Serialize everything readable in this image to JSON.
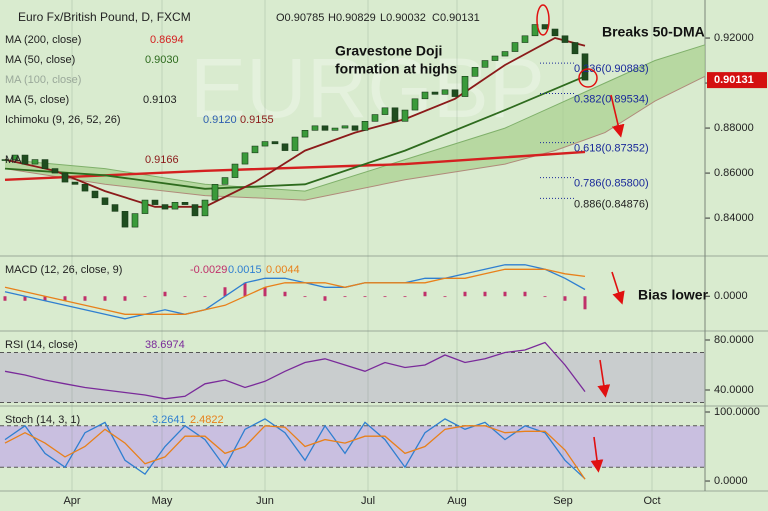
{
  "chart_data": [
    {
      "type": "candlestick",
      "title": "Euro Fx/British Pound, D, FXCM",
      "ohlc_labels": [
        "O0.90785",
        "H0.90829",
        "L0.90032",
        "C0.90131"
      ],
      "watermark": "EURGBP",
      "x": [
        0,
        1,
        2,
        3,
        4,
        5,
        6,
        7,
        8,
        9,
        10,
        11,
        12,
        13,
        14,
        15,
        16,
        17,
        18,
        19,
        20,
        21,
        22,
        23,
        24,
        25,
        26,
        27,
        28,
        29,
        30,
        31,
        32,
        33,
        34,
        35,
        36,
        37,
        38,
        39,
        40,
        41,
        42,
        43,
        44,
        45,
        46,
        47,
        48,
        49,
        50,
        51,
        52,
        53,
        54,
        55,
        56,
        57,
        58
      ],
      "values": [
        0.866,
        0.868,
        0.864,
        0.866,
        0.862,
        0.86,
        0.856,
        0.855,
        0.852,
        0.849,
        0.846,
        0.843,
        0.836,
        0.842,
        0.848,
        0.846,
        0.844,
        0.847,
        0.846,
        0.841,
        0.848,
        0.855,
        0.858,
        0.864,
        0.869,
        0.872,
        0.874,
        0.873,
        0.87,
        0.876,
        0.879,
        0.881,
        0.879,
        0.88,
        0.881,
        0.879,
        0.883,
        0.886,
        0.889,
        0.883,
        0.888,
        0.893,
        0.896,
        0.895,
        0.897,
        0.894,
        0.903,
        0.907,
        0.91,
        0.912,
        0.914,
        0.918,
        0.921,
        0.926,
        0.924,
        0.921,
        0.918,
        0.913,
        0.90131
      ],
      "last_label": "0.90131",
      "color_up": "#3a9a3a",
      "color_down": "#1f4d1f",
      "xlim": [
        -0.5,
        70
      ],
      "xticks": [
        {
          "value": 6.7,
          "label": "Apr"
        },
        {
          "value": 15.7,
          "label": "May"
        },
        {
          "value": 26,
          "label": "Jun"
        },
        {
          "value": 36.3,
          "label": "Jul"
        },
        {
          "value": 45.2,
          "label": "Aug"
        },
        {
          "value": 55.8,
          "label": "Sep"
        },
        {
          "value": 64.7,
          "label": "Oct"
        }
      ],
      "ylim": [
        0.8236,
        0.9369
      ],
      "yticks": [
        {
          "value": 0.84,
          "label": "0.84000"
        },
        {
          "value": 0.86,
          "label": "0.86000"
        },
        {
          "value": 0.88,
          "label": "0.88000"
        },
        {
          "value": 0.9,
          "label": "0.90000"
        },
        {
          "value": 0.92,
          "label": "0.92000"
        }
      ],
      "series": [
        {
          "name": "MA (200, close)",
          "value_label": "0.8694",
          "color": "#d42020",
          "x": [
            0,
            20,
            40,
            58
          ],
          "values": [
            0.857,
            0.861,
            0.864,
            0.8694
          ]
        },
        {
          "name": "MA (50, close)",
          "value_label": "0.9030",
          "color": "#2e6b1e",
          "x": [
            0,
            10,
            20,
            30,
            40,
            50,
            58
          ],
          "values": [
            0.862,
            0.859,
            0.853,
            0.855,
            0.87,
            0.888,
            0.903
          ]
        },
        {
          "name": "MA",
          "value_label": "0.9166",
          "color": "#8b1a1a",
          "x": [
            0,
            5,
            10,
            15,
            20,
            25,
            30,
            35,
            40,
            45,
            50,
            55,
            58
          ],
          "values": [
            0.866,
            0.861,
            0.852,
            0.845,
            0.845,
            0.856,
            0.87,
            0.878,
            0.884,
            0.893,
            0.908,
            0.92,
            0.9166
          ]
        }
      ],
      "legend_rows": [
        {
          "label": "MA (100, close)"
        },
        {
          "label": "MA (5, close)",
          "value": "0.9103"
        }
      ],
      "cloud": {
        "name": "Ichimoku (9, 26, 52, 26)",
        "value_labels": [
          "0.9120",
          "0.9155"
        ],
        "color": "#a8d08d",
        "x": [
          0,
          10,
          20,
          30,
          40,
          50,
          55,
          60,
          65,
          70
        ],
        "span_a": [
          0.866,
          0.862,
          0.855,
          0.852,
          0.866,
          0.88,
          0.89,
          0.9,
          0.91,
          0.917
        ],
        "span_b": [
          0.862,
          0.855,
          0.85,
          0.848,
          0.857,
          0.864,
          0.87,
          0.878,
          0.892,
          0.903
        ]
      },
      "fibonacci": [
        {
          "label": "0.236(0.90883)",
          "value": 0.90883
        },
        {
          "label": "0.382(0.89534)",
          "value": 0.89534
        },
        {
          "label": "0.618(0.87352)",
          "value": 0.87352
        },
        {
          "label": "0.786(0.85800)",
          "value": 0.858
        },
        {
          "label": "0.886(0.84876)",
          "value": 0.84876
        }
      ]
    },
    {
      "type": "line",
      "title": "MACD (12, 26, close, 9)",
      "x": [
        0,
        2,
        4,
        6,
        8,
        10,
        12,
        14,
        16,
        18,
        20,
        22,
        24,
        26,
        28,
        30,
        32,
        34,
        36,
        38,
        40,
        42,
        44,
        46,
        48,
        50,
        52,
        54,
        56,
        58
      ],
      "ylim": [
        -0.0075,
        0.0085
      ],
      "yticks": [
        {
          "value": 0,
          "label": "0.0000"
        }
      ],
      "histogram": {
        "color": "#c0306a",
        "value_label": "-0.0029",
        "values": [
          -0.001,
          -0.001,
          -0.001,
          -0.001,
          -0.001,
          -0.001,
          -0.001,
          0,
          0.001,
          0,
          0,
          0.002,
          0.003,
          0.002,
          0.001,
          0,
          -0.001,
          0,
          0,
          0,
          0,
          0.001,
          0,
          0.001,
          0.001,
          0.001,
          0.001,
          0,
          -0.001,
          -0.0029
        ]
      },
      "series": [
        {
          "color": "#2f7fd0",
          "value_label": "0.0015",
          "values": [
            0.001,
            0,
            -0.001,
            -0.002,
            -0.003,
            -0.004,
            -0.005,
            -0.004,
            -0.003,
            -0.004,
            -0.003,
            0,
            0.003,
            0.004,
            0.004,
            0.003,
            0.002,
            0.002,
            0.003,
            0.003,
            0.003,
            0.004,
            0.004,
            0.005,
            0.006,
            0.007,
            0.007,
            0.006,
            0.004,
            0.0015
          ]
        },
        {
          "color": "#e8801a",
          "value_label": "0.0044",
          "values": [
            0.002,
            0.001,
            0,
            -0.001,
            -0.002,
            -0.003,
            -0.004,
            -0.004,
            -0.004,
            -0.004,
            -0.003,
            -0.002,
            0,
            0.002,
            0.003,
            0.003,
            0.003,
            0.002,
            0.003,
            0.003,
            0.003,
            0.003,
            0.004,
            0.004,
            0.005,
            0.006,
            0.006,
            0.006,
            0.005,
            0.0044
          ]
        }
      ]
    },
    {
      "type": "line",
      "title": "RSI (14, close)",
      "x": [
        0,
        2,
        4,
        6,
        8,
        10,
        12,
        14,
        16,
        18,
        20,
        22,
        24,
        26,
        28,
        30,
        32,
        34,
        36,
        38,
        40,
        42,
        44,
        46,
        48,
        50,
        52,
        54,
        56,
        58
      ],
      "ylim": [
        28,
        85.6
      ],
      "yticks": [
        {
          "value": 80,
          "label": "80.0000"
        },
        {
          "value": 40,
          "label": "40.0000"
        }
      ],
      "band": [
        30,
        70
      ],
      "band_color": "#c9cdce",
      "series": [
        {
          "color": "#7a2a9a",
          "value_label": "38.6974",
          "values": [
            55,
            52,
            48,
            45,
            42,
            40,
            38,
            36,
            33,
            35,
            45,
            48,
            42,
            47,
            55,
            62,
            65,
            60,
            55,
            62,
            58,
            60,
            68,
            62,
            65,
            70,
            72,
            78,
            60,
            38.6974
          ]
        }
      ]
    },
    {
      "type": "line",
      "title": "Stoch (14, 3, 1)",
      "x": [
        0,
        2,
        4,
        6,
        8,
        10,
        12,
        14,
        16,
        18,
        20,
        22,
        24,
        26,
        28,
        30,
        32,
        34,
        36,
        38,
        40,
        42,
        44,
        46,
        48,
        50,
        52,
        54,
        56,
        58
      ],
      "ylim": [
        -13,
        105.8
      ],
      "yticks": [
        {
          "value": 100,
          "label": "100.0000"
        },
        {
          "value": 0,
          "label": "0.0000"
        }
      ],
      "band": [
        20,
        80
      ],
      "band_color": "#c9bfe0",
      "series": [
        {
          "color": "#2f7fd0",
          "value_label": "3.2641",
          "values": [
            60,
            80,
            40,
            20,
            70,
            85,
            30,
            10,
            50,
            80,
            60,
            20,
            75,
            90,
            70,
            30,
            80,
            40,
            85,
            60,
            20,
            70,
            90,
            75,
            85,
            60,
            80,
            70,
            30,
            3.2641
          ]
        },
        {
          "color": "#e8801a",
          "value_label": "2.4822",
          "values": [
            55,
            70,
            55,
            35,
            50,
            75,
            55,
            25,
            35,
            65,
            65,
            40,
            50,
            80,
            78,
            50,
            60,
            55,
            65,
            65,
            40,
            50,
            75,
            80,
            80,
            70,
            72,
            72,
            45,
            2.4822
          ]
        }
      ]
    }
  ],
  "annotations": {
    "doji": [
      "Gravestone Doji",
      "formation at highs"
    ],
    "breaks": "Breaks 50-DMA",
    "bias": "Bias lower"
  }
}
